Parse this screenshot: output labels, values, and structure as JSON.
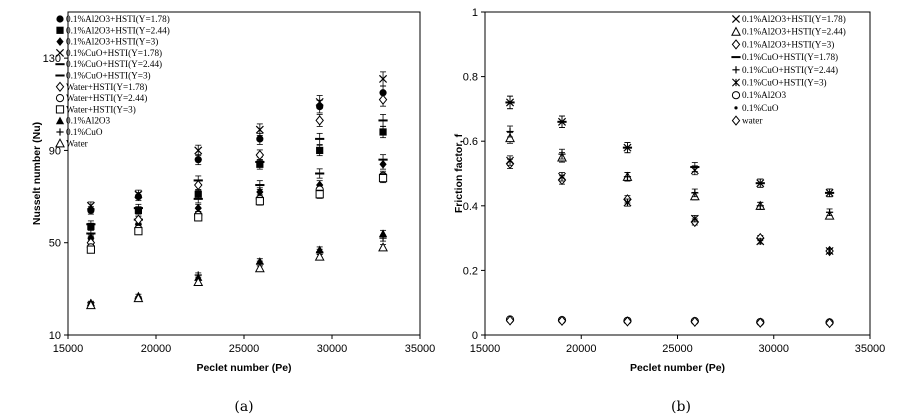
{
  "chart_data": [
    {
      "type": "scatter",
      "subfigure_label": "(a)",
      "xlabel": "Peclet number (Pe)",
      "ylabel": "Nusselt number (Nu)",
      "xlim": [
        15000,
        35000
      ],
      "ylim": [
        10,
        150
      ],
      "xticks": [
        "15000",
        "20000",
        "25000",
        "30000",
        "35000"
      ],
      "yticks": [
        "10",
        "50",
        "90",
        "130"
      ],
      "legend_position": "top-left",
      "series": [
        {
          "name": "0.1%Al2O3+HSTI(Y=1.78)",
          "marker": "circle",
          "x": [
            16300,
            19000,
            22400,
            25900,
            29300,
            32900
          ],
          "y": [
            64,
            70,
            86,
            95,
            109,
            115
          ]
        },
        {
          "name": "0.1%Al2O3+HSTI(Y=2.44)",
          "marker": "square",
          "x": [
            16300,
            19000,
            22400,
            25900,
            29300,
            32900
          ],
          "y": [
            57,
            64,
            71,
            84,
            90,
            98
          ]
        },
        {
          "name": "0.1%Al2O3+HSTI(Y=3)",
          "marker": "diamond",
          "x": [
            16300,
            19000,
            22400,
            25900,
            29300,
            32900
          ],
          "y": [
            52,
            58,
            65,
            72,
            75,
            84
          ]
        },
        {
          "name": "0.1%CuO+HSTI(Y=1.78)",
          "marker": "x",
          "x": [
            16300,
            19000,
            22400,
            25900,
            29300,
            32900
          ],
          "y": [
            66,
            71,
            90,
            99,
            111,
            121
          ]
        },
        {
          "name": "0.1%CuO+HSTI(Y=2.44)",
          "marker": "dash",
          "x": [
            16300,
            19000,
            22400,
            25900,
            29300,
            32900
          ],
          "y": [
            58,
            65,
            77,
            85,
            95,
            103
          ]
        },
        {
          "name": "0.1%CuO+HSTI(Y=3)",
          "marker": "dash",
          "x": [
            16300,
            19000,
            22400,
            25900,
            29300,
            32900
          ],
          "y": [
            54,
            60,
            69,
            75,
            80,
            86
          ]
        },
        {
          "name": "Water+HSTI(Y=1.78)",
          "marker": "diamond-open",
          "x": [
            16300,
            19000,
            22400,
            25900,
            29300,
            32900
          ],
          "y": [
            50,
            60,
            75,
            88,
            103,
            112
          ]
        },
        {
          "name": "Water+HSTI(Y=2.44)",
          "marker": "circle-open",
          "x": [
            16300,
            19000,
            22400,
            25900,
            29300,
            32900
          ],
          "y": [
            48,
            56,
            62,
            69,
            73,
            79
          ]
        },
        {
          "name": "Water+HSTI(Y=3)",
          "marker": "square-open",
          "x": [
            16300,
            19000,
            22400,
            25900,
            29300,
            32900
          ],
          "y": [
            47,
            55,
            61,
            68,
            71,
            78
          ]
        },
        {
          "name": "0.1%Al2O3",
          "marker": "triangle",
          "x": [
            16300,
            19000,
            22400,
            25900,
            29300,
            32900
          ],
          "y": [
            24,
            27,
            35,
            42,
            47,
            54
          ]
        },
        {
          "name": "0.1%CuO",
          "marker": "plus",
          "x": [
            16300,
            19000,
            22400,
            25900,
            29300,
            32900
          ],
          "y": [
            24,
            26,
            36,
            41,
            46,
            52
          ]
        },
        {
          "name": "Water",
          "marker": "triangle-open",
          "x": [
            16300,
            19000,
            22400,
            25900,
            29300,
            32900
          ],
          "y": [
            23,
            26,
            33,
            39,
            44,
            48
          ]
        }
      ]
    },
    {
      "type": "scatter",
      "subfigure_label": "(b)",
      "xlabel": "Peclet number (Pe)",
      "ylabel": "Friction factor, f",
      "xlim": [
        15000,
        35000
      ],
      "ylim": [
        0,
        1
      ],
      "xticks": [
        "15000",
        "20000",
        "25000",
        "30000",
        "35000"
      ],
      "yticks": [
        "0",
        "0.2",
        "0.4",
        "0.6",
        "0.8",
        "1"
      ],
      "legend_position": "top-right",
      "series": [
        {
          "name": "0.1%Al2O3+HSTI(Y=1.78)",
          "marker": "x",
          "x": [
            16300,
            19000,
            22400,
            25900,
            29300,
            32900
          ],
          "y": [
            0.72,
            0.66,
            0.58,
            0.51,
            0.47,
            0.44
          ]
        },
        {
          "name": "0.1%Al2O3+HSTI(Y=2.44)",
          "marker": "triangle-open",
          "x": [
            16300,
            19000,
            22400,
            25900,
            29300,
            32900
          ],
          "y": [
            0.61,
            0.55,
            0.49,
            0.43,
            0.4,
            0.37
          ]
        },
        {
          "name": "0.1%Al2O3+HSTI(Y=3)",
          "marker": "diamond-open",
          "x": [
            16300,
            19000,
            22400,
            25900,
            29300,
            32900
          ],
          "y": [
            0.53,
            0.48,
            0.42,
            0.35,
            0.3,
            0.26
          ]
        },
        {
          "name": "0.1%CuO+HSTI(Y=1.78)",
          "marker": "dash",
          "x": [
            16300,
            19000,
            22400,
            25900,
            29300,
            32900
          ],
          "y": [
            0.72,
            0.66,
            0.58,
            0.52,
            0.47,
            0.44
          ]
        },
        {
          "name": "0.1%CuO+HSTI(Y=2.44)",
          "marker": "plus",
          "x": [
            16300,
            19000,
            22400,
            25900,
            29300,
            32900
          ],
          "y": [
            0.63,
            0.56,
            0.49,
            0.44,
            0.4,
            0.38
          ]
        },
        {
          "name": "0.1%CuO+HSTI(Y=3)",
          "marker": "asterisk",
          "x": [
            16300,
            19000,
            22400,
            25900,
            29300,
            32900
          ],
          "y": [
            0.54,
            0.49,
            0.41,
            0.36,
            0.29,
            0.26
          ]
        },
        {
          "name": "0.1%Al2O3",
          "marker": "circle-open",
          "x": [
            16300,
            19000,
            22400,
            25900,
            29300,
            32900
          ],
          "y": [
            0.048,
            0.046,
            0.044,
            0.043,
            0.04,
            0.039
          ]
        },
        {
          "name": "0.1%CuO",
          "marker": "dot",
          "x": [
            16300,
            19000,
            22400,
            25900,
            29300,
            32900
          ],
          "y": [
            0.046,
            0.045,
            0.043,
            0.042,
            0.039,
            0.038
          ]
        },
        {
          "name": "water",
          "marker": "diamond-open",
          "x": [
            16300,
            19000,
            22400,
            25900,
            29300,
            32900
          ],
          "y": [
            0.045,
            0.044,
            0.042,
            0.041,
            0.038,
            0.037
          ]
        }
      ]
    }
  ]
}
